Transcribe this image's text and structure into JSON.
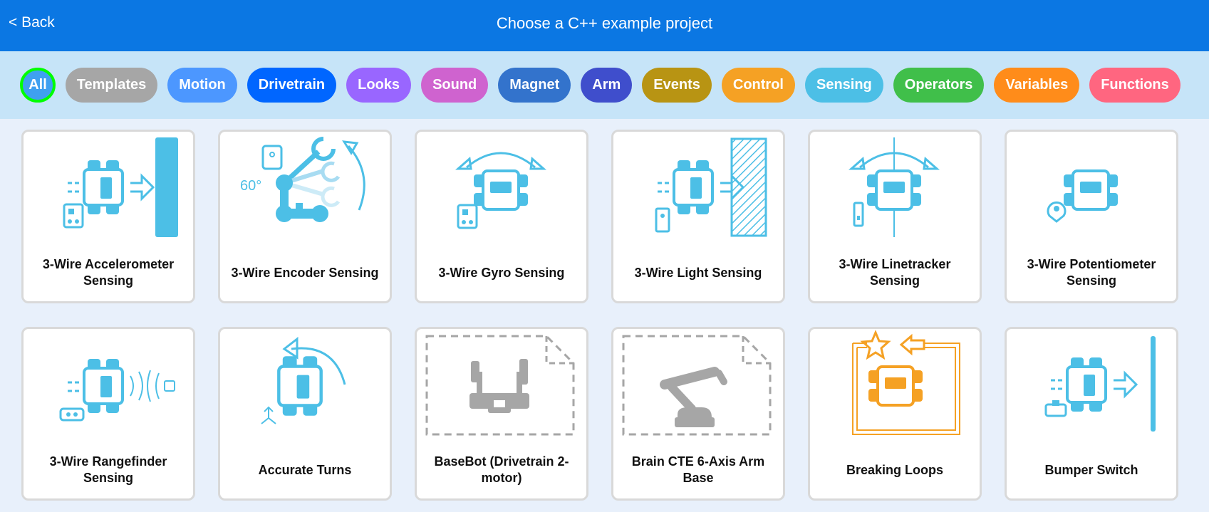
{
  "header": {
    "back_label": "< Back",
    "title": "Choose a C++ example project"
  },
  "filters": [
    {
      "label": "All",
      "color": "#3fa0f0",
      "active": true
    },
    {
      "label": "Templates",
      "color": "#a6a6a6"
    },
    {
      "label": "Motion",
      "color": "#4c97ff"
    },
    {
      "label": "Drivetrain",
      "color": "#0066ff"
    },
    {
      "label": "Looks",
      "color": "#9966ff"
    },
    {
      "label": "Sound",
      "color": "#cf63cf"
    },
    {
      "label": "Magnet",
      "color": "#3373cc"
    },
    {
      "label": "Arm",
      "color": "#3f4ecc"
    },
    {
      "label": "Events",
      "color": "#b89413"
    },
    {
      "label": "Control",
      "color": "#f5a124"
    },
    {
      "label": "Sensing",
      "color": "#4cbfe6"
    },
    {
      "label": "Operators",
      "color": "#40bf4a"
    },
    {
      "label": "Variables",
      "color": "#ff8c1a"
    },
    {
      "label": "Functions",
      "color": "#ff6680"
    }
  ],
  "cards": [
    {
      "title": "3-Wire Accelerometer Sensing",
      "icon": "accelerometer-icon"
    },
    {
      "title": "3-Wire Encoder Sensing",
      "icon": "encoder-arm-icon",
      "icon_text": "60°"
    },
    {
      "title": "3-Wire Gyro Sensing",
      "icon": "gyro-icon"
    },
    {
      "title": "3-Wire Light Sensing",
      "icon": "light-sensor-icon"
    },
    {
      "title": "3-Wire Linetracker Sensing",
      "icon": "linetracker-icon"
    },
    {
      "title": "3-Wire Potentiometer Sensing",
      "icon": "potentiometer-icon"
    },
    {
      "title": "3-Wire Rangefinder Sensing",
      "icon": "rangefinder-icon"
    },
    {
      "title": "Accurate Turns",
      "icon": "accurate-turns-icon"
    },
    {
      "title": "BaseBot (Drivetrain 2-motor)",
      "icon": "basebot-template-icon"
    },
    {
      "title": "Brain CTE 6-Axis Arm Base",
      "icon": "arm-template-icon"
    },
    {
      "title": "Breaking Loops",
      "icon": "breaking-loops-icon"
    },
    {
      "title": "Bumper Switch",
      "icon": "bumper-switch-icon"
    }
  ],
  "colors": {
    "sensing": "#4cbfe6",
    "template": "#a6a6a6",
    "control": "#f5a124"
  }
}
